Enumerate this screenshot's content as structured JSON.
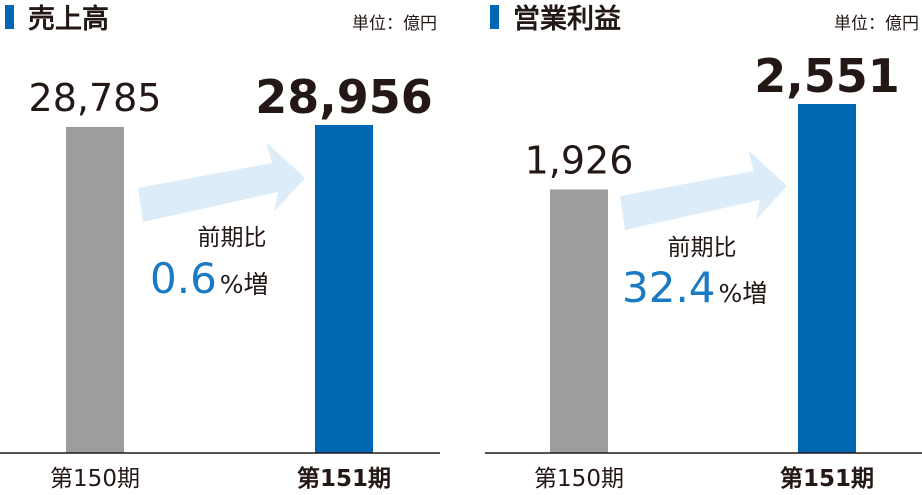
{
  "chart_data": [
    {
      "type": "bar",
      "title": "売上高",
      "unit": "単位：億円",
      "categories": [
        "第150期",
        "第151期"
      ],
      "values": [
        28785,
        28956
      ],
      "value_labels": [
        "28,785",
        "28,956"
      ],
      "colors": [
        "#9d9d9d",
        "#0068b3"
      ],
      "title_color": "#0068b3",
      "change_label": "前期比",
      "change": 0.6,
      "change_unit": "%増",
      "change_color": "#1a7ac4"
    },
    {
      "type": "bar",
      "title": "営業利益",
      "unit": "単位：億円",
      "categories": [
        "第150期",
        "第151期"
      ],
      "values": [
        1926,
        2551
      ],
      "value_labels": [
        "1,926",
        "2,551"
      ],
      "colors": [
        "#9d9d9d",
        "#0068b3"
      ],
      "title_color": "#0068b3",
      "change_label": "前期比",
      "change": 32.4,
      "change_unit": "%増",
      "change_color": "#1a7ac4"
    }
  ]
}
